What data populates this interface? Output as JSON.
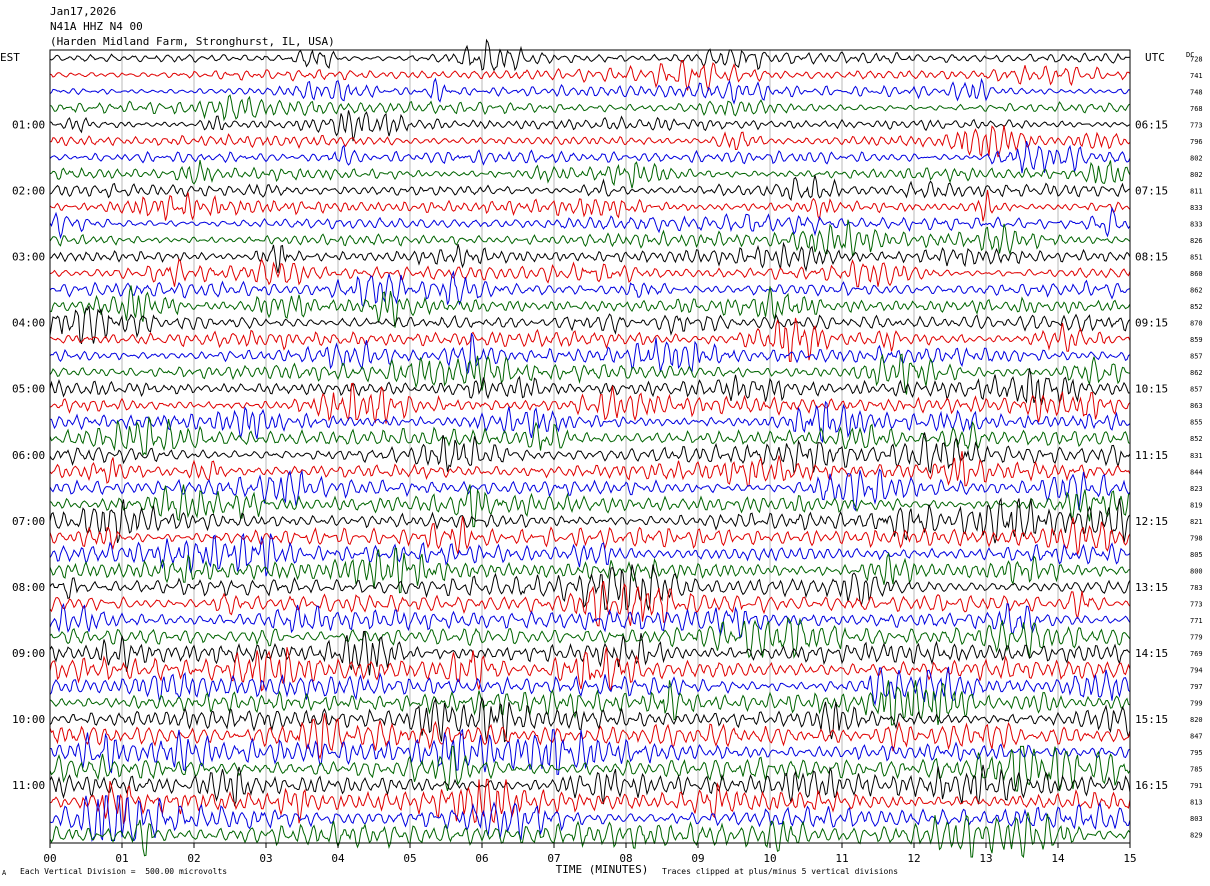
{
  "header": {
    "date": "Jan17,2026",
    "station": "N41A HHZ N4 00",
    "location": "(Harden Midland Farm, Stronghurst, IL, USA)"
  },
  "labels": {
    "left_tz": "EST",
    "right_tz": "UTC",
    "dc": "DC",
    "xlabel": "TIME (MINUTES)"
  },
  "footer": {
    "scale": "Each Vertical Division =  500.00 microvolts",
    "clip": "Traces clipped at plus/minus 5 vertical divisions",
    "corner": "A"
  },
  "colors": [
    "#000000",
    "#e00000",
    "#0000e0",
    "#006400"
  ],
  "chart_data": {
    "type": "line",
    "title": "",
    "xlabel": "TIME (MINUTES)",
    "xlim": [
      0,
      15
    ],
    "x_ticks": [
      "00",
      "01",
      "02",
      "03",
      "04",
      "05",
      "06",
      "07",
      "08",
      "09",
      "10",
      "11",
      "12",
      "13",
      "14",
      "15"
    ],
    "left_time_labels": [
      {
        "row": 4,
        "text": "01:00"
      },
      {
        "row": 8,
        "text": "02:00"
      },
      {
        "row": 12,
        "text": "03:00"
      },
      {
        "row": 16,
        "text": "04:00"
      },
      {
        "row": 20,
        "text": "05:00"
      },
      {
        "row": 24,
        "text": "06:00"
      },
      {
        "row": 28,
        "text": "07:00"
      },
      {
        "row": 32,
        "text": "08:00"
      },
      {
        "row": 36,
        "text": "09:00"
      },
      {
        "row": 40,
        "text": "10:00"
      },
      {
        "row": 44,
        "text": "11:00"
      }
    ],
    "right_time_labels": [
      {
        "row": 4,
        "text": "06:15"
      },
      {
        "row": 8,
        "text": "07:15"
      },
      {
        "row": 12,
        "text": "08:15"
      },
      {
        "row": 16,
        "text": "09:15"
      },
      {
        "row": 20,
        "text": "10:15"
      },
      {
        "row": 24,
        "text": "11:15"
      },
      {
        "row": 28,
        "text": "12:15"
      },
      {
        "row": 32,
        "text": "13:15"
      },
      {
        "row": 36,
        "text": "14:15"
      },
      {
        "row": 40,
        "text": "15:15"
      },
      {
        "row": 44,
        "text": "16:15"
      }
    ],
    "dc_values": [
      "728",
      "741",
      "748",
      "768",
      "773",
      "796",
      "802",
      "802",
      "811",
      "833",
      "833",
      "826",
      "851",
      "860",
      "862",
      "852",
      "870",
      "859",
      "857",
      "862",
      "857",
      "863",
      "855",
      "852",
      "831",
      "844",
      "823",
      "819",
      "821",
      "798",
      "805",
      "800",
      "783",
      "773",
      "771",
      "779",
      "769",
      "794",
      "797",
      "799",
      "820",
      "847",
      "795",
      "785",
      "791",
      "813",
      "803",
      "829"
    ],
    "trace_count": 48,
    "color_cycle": [
      "black",
      "red",
      "blue",
      "green"
    ],
    "vertical_division_microvolts": 500.0,
    "clip_divisions": 5
  }
}
